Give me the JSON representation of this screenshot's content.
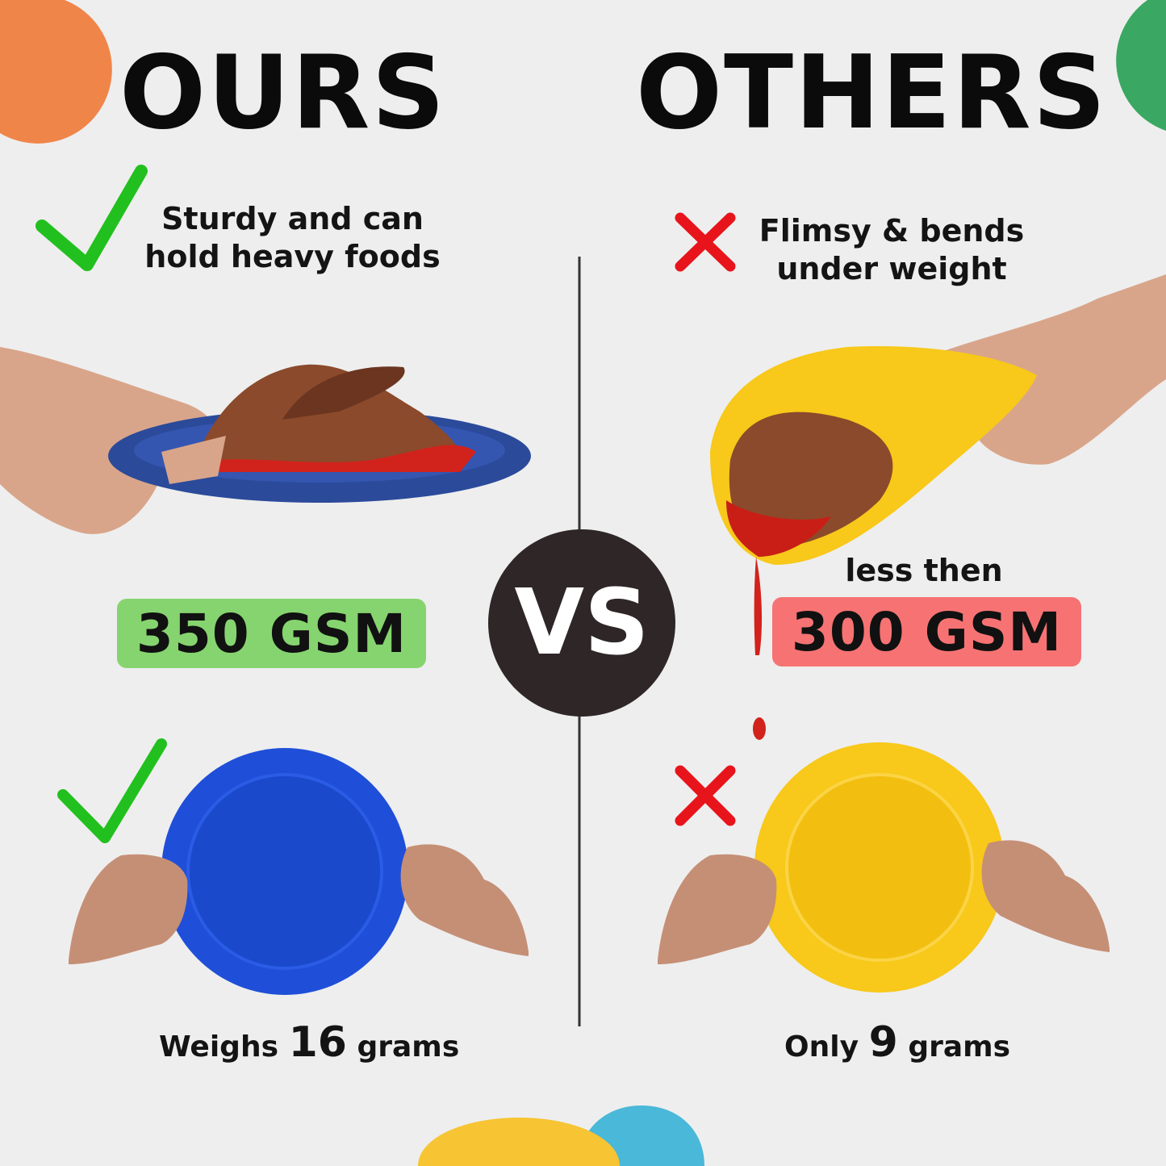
{
  "left": {
    "title": "OURS",
    "claim_line1": "Sturdy and can",
    "claim_line2": "hold heavy foods",
    "badge": "350 GSM",
    "weight_prefix": "Weighs",
    "weight_value": "16",
    "weight_suffix": "grams"
  },
  "right": {
    "title": "OTHERS",
    "claim_line1": "Flimsy & bends",
    "claim_line2": "under weight",
    "badge_caption": "less then",
    "badge": "300 GSM",
    "weight_prefix": "Only",
    "weight_value": "9",
    "weight_suffix": "grams"
  },
  "vs_label": "VS",
  "colors": {
    "background": "#eeeeee",
    "good_badge": "#86d46f",
    "bad_badge": "#f77373",
    "check": "#22c01e",
    "cross": "#e8141b",
    "vs_circle": "#2e2627",
    "blue_plate": "#1f4fd8",
    "yellow_plate": "#f8c81a"
  },
  "icons": [
    "check-icon",
    "cross-icon"
  ]
}
